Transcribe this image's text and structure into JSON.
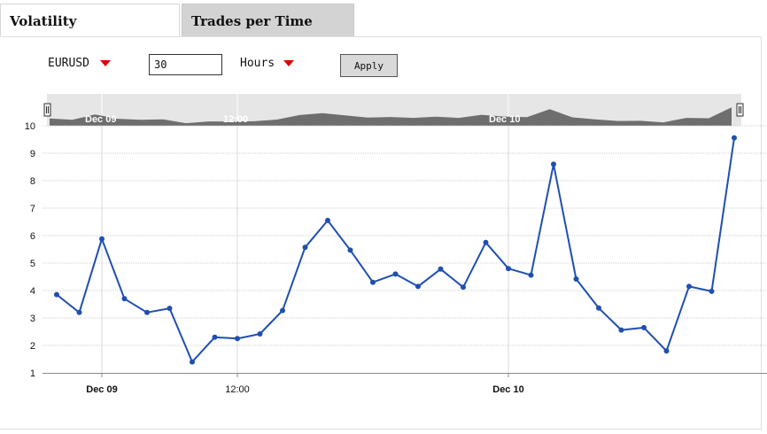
{
  "tabs": [
    {
      "label": "Volatility",
      "active": true
    },
    {
      "label": "Trades per Time",
      "active": false
    }
  ],
  "controls": {
    "symbol": "EURUSD",
    "period_value": "30",
    "unit": "Hours",
    "apply_label": "Apply",
    "arrow_color": "#e00000"
  },
  "colors": {
    "line": "#1f4fb0",
    "navigator_fill": "#6e6e6e",
    "navigator_bg": "#e6e6e6"
  },
  "navigator": {
    "labels": [
      "Dec 09",
      "12:00",
      "Dec 10"
    ]
  },
  "chart_data": {
    "type": "line",
    "title": "",
    "xlabel": "",
    "ylabel": "",
    "ylim": [
      1,
      10
    ],
    "y_ticks": [
      "1",
      "2",
      "3",
      "4",
      "5",
      "6",
      "7",
      "8",
      "9",
      "10"
    ],
    "x_tick_labels": [
      {
        "label": "Dec 09",
        "bold": true
      },
      {
        "label": "12:00",
        "bold": false
      },
      {
        "label": "Dec 10",
        "bold": true
      }
    ],
    "x_tick_index": [
      2,
      8,
      20
    ],
    "grid": true,
    "legend": "none",
    "series": [
      {
        "values": [
          3.85,
          3.2,
          5.88,
          3.7,
          3.2,
          3.35,
          1.4,
          2.3,
          2.25,
          2.42,
          3.27,
          5.57,
          6.55,
          5.47,
          4.3,
          4.6,
          4.15,
          4.78,
          4.12,
          5.75,
          4.8,
          4.56,
          8.6,
          4.42,
          3.36,
          2.56,
          2.65,
          1.8,
          4.15,
          3.97,
          9.56
        ]
      }
    ]
  }
}
